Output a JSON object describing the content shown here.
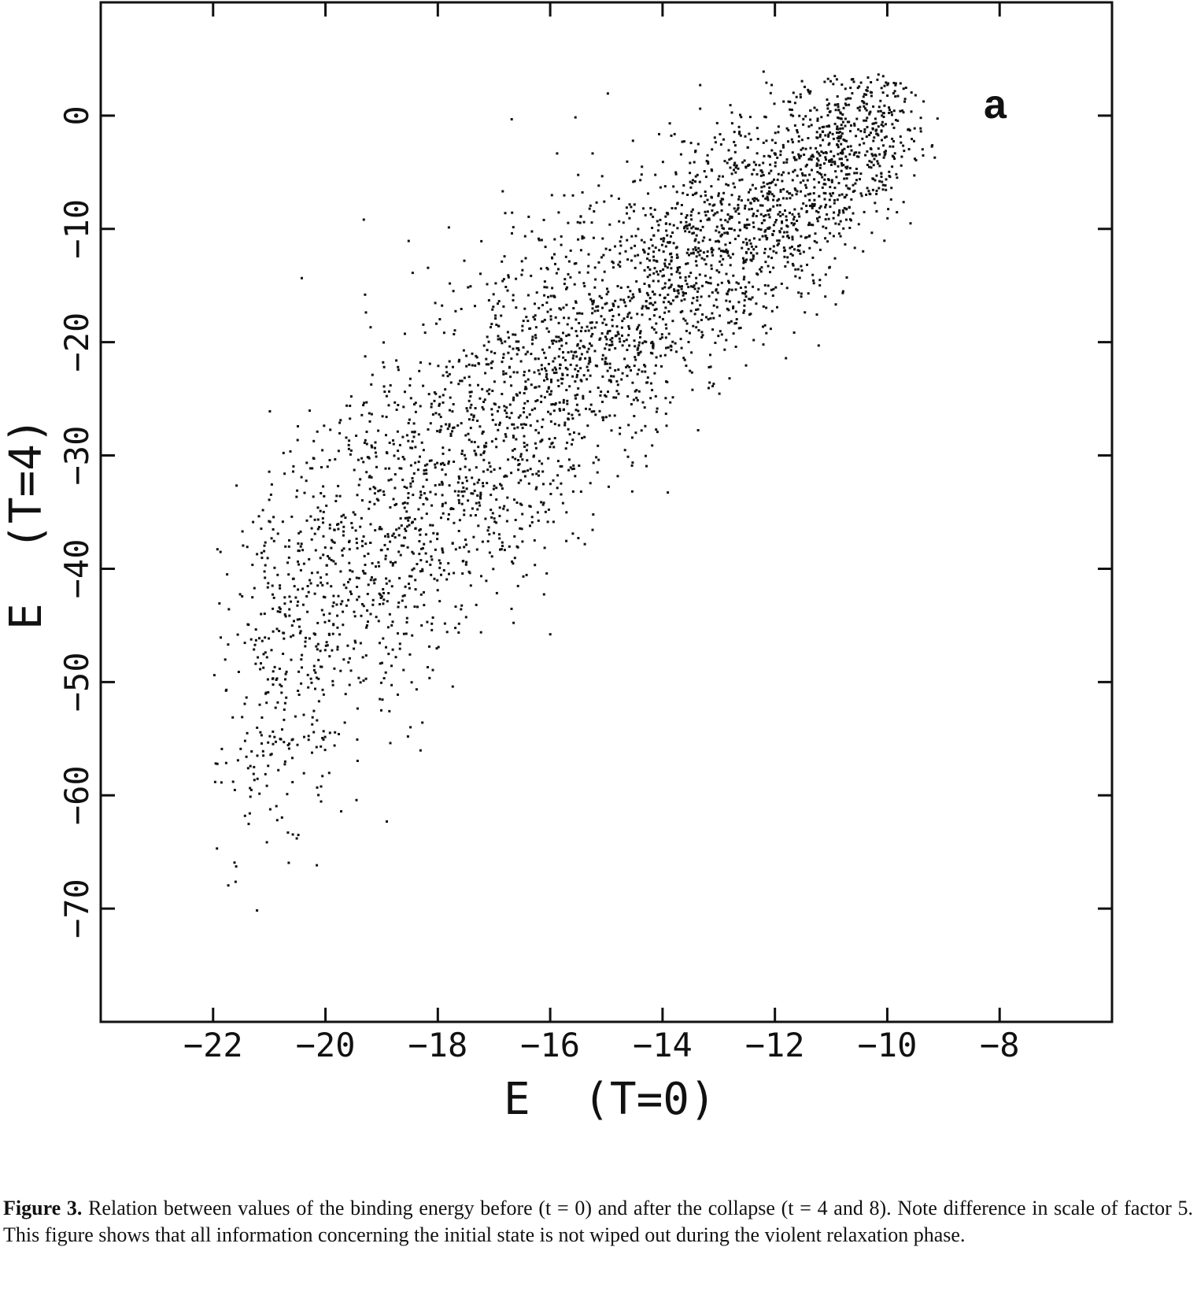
{
  "chart_data": {
    "type": "scatter",
    "panel_label": "a",
    "xlabel": "E  (T=0)",
    "ylabel": "E  (T=4)",
    "xlim": [
      -24,
      -6
    ],
    "ylim": [
      -80,
      10
    ],
    "xticks": [
      -22,
      -20,
      -18,
      -16,
      -14,
      -12,
      -10,
      -8
    ],
    "yticks": [
      0,
      -10,
      -20,
      -30,
      -40,
      -50,
      -60,
      -70
    ],
    "grid": false,
    "point_count": 3600,
    "point_color": "#111111",
    "distribution_description": "dense cloud of points forming a band from lower-left (about x=-21, y=-65) to upper-right (about x=-12, y=-3), thin tail to x=-8.8"
  },
  "caption": {
    "label": "Figure 3.",
    "text": "Relation between values of the binding energy before (t = 0) and after the collapse (t = 4 and 8). Note difference in scale of factor 5. This figure shows that all information concerning the initial state is not wiped out during the violent relaxation phase."
  }
}
